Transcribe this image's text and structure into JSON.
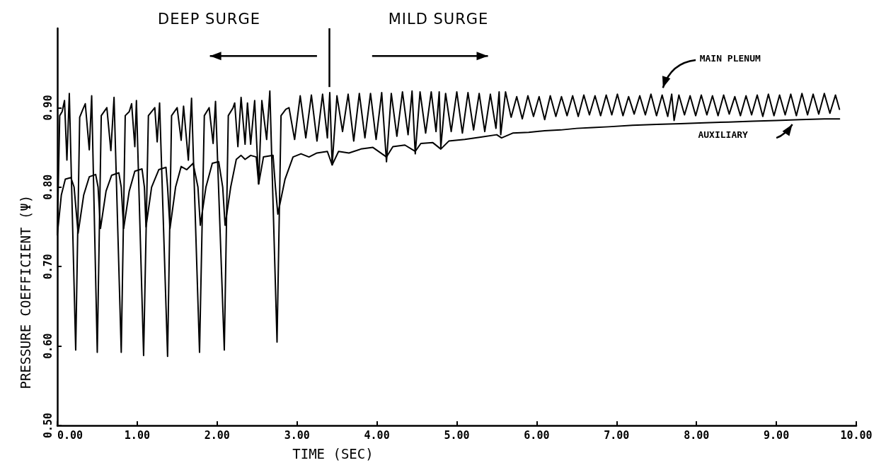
{
  "chart_data": {
    "type": "line",
    "xlabel": "TIME (SEC)",
    "ylabel": "PRESSURE COEFFICIENT (Ψ)",
    "annotations": [
      "DEEP SURGE",
      "MILD SURGE"
    ],
    "xlim": [
      0,
      10
    ],
    "xticks": [
      {
        "value": 0,
        "label": "0.00"
      },
      {
        "value": 1,
        "label": "1.00"
      },
      {
        "value": 2,
        "label": "2.00"
      },
      {
        "value": 3,
        "label": "3.00"
      },
      {
        "value": 4,
        "label": "4.00"
      },
      {
        "value": 5,
        "label": "5.00"
      },
      {
        "value": 6,
        "label": "6.00"
      },
      {
        "value": 7,
        "label": "7.00"
      },
      {
        "value": 8,
        "label": "8.00"
      },
      {
        "value": 9,
        "label": "9.00"
      },
      {
        "value": 10,
        "label": "10.00"
      }
    ],
    "ylim": [
      0.5,
      1.0
    ],
    "yticks": [
      {
        "value": 0.5,
        "label": "0.50"
      },
      {
        "value": 0.6,
        "label": "0.60"
      },
      {
        "value": 0.7,
        "label": "0.70"
      },
      {
        "value": 0.8,
        "label": "0.80"
      },
      {
        "value": 0.9,
        "label": "0.90"
      }
    ],
    "ref_lines": [
      {
        "axis": "x",
        "value": 3.4,
        "color": "#000000"
      }
    ],
    "series": [
      {
        "name": "MAIN PLENUM",
        "color": "#000000",
        "x": [
          0.0,
          0.03,
          0.06,
          0.09,
          0.12,
          0.15,
          0.23,
          0.28,
          0.32,
          0.35,
          0.4,
          0.43,
          0.5,
          0.55,
          0.62,
          0.67,
          0.71,
          0.8,
          0.85,
          0.9,
          0.93,
          0.97,
          0.99,
          1.08,
          1.14,
          1.22,
          1.25,
          1.28,
          1.38,
          1.43,
          1.5,
          1.55,
          1.58,
          1.64,
          1.68,
          1.78,
          1.84,
          1.9,
          1.95,
          1.98,
          2.09,
          2.14,
          2.2,
          2.22,
          2.26,
          2.3,
          2.35,
          2.38,
          2.42,
          2.47,
          2.52,
          2.56,
          2.62,
          2.66,
          2.75,
          2.8,
          2.86,
          2.9,
          2.97,
          3.04,
          3.11,
          3.18,
          3.25,
          3.32,
          3.38,
          3.41,
          3.44,
          3.5,
          3.57,
          3.64,
          3.71,
          3.78,
          3.85,
          3.92,
          3.99,
          4.06,
          4.12,
          4.18,
          4.25,
          4.32,
          4.39,
          4.44,
          4.48,
          4.54,
          4.61,
          4.68,
          4.74,
          4.78,
          4.8,
          4.86,
          4.93,
          5.0,
          5.07,
          5.14,
          5.21,
          5.28,
          5.35,
          5.42,
          5.49,
          5.53,
          5.55,
          5.61,
          5.68,
          5.75,
          5.82,
          5.89,
          5.96,
          6.03,
          6.1,
          6.17,
          6.24,
          6.31,
          6.38,
          6.45,
          6.52,
          6.59,
          6.66,
          6.73,
          6.8,
          6.87,
          6.94,
          7.01,
          7.08,
          7.15,
          7.22,
          7.29,
          7.36,
          7.43,
          7.5,
          7.57,
          7.64,
          7.69,
          7.72,
          7.78,
          7.85,
          7.92,
          7.99,
          8.06,
          8.13,
          8.2,
          8.27,
          8.34,
          8.41,
          8.48,
          8.55,
          8.62,
          8.69,
          8.76,
          8.83,
          8.9,
          8.97,
          9.04,
          9.11,
          9.18,
          9.25,
          9.32,
          9.39,
          9.46,
          9.53,
          9.6,
          9.67,
          9.74,
          9.79
        ],
        "values": [
          0.742,
          0.89,
          0.895,
          0.909,
          0.834,
          0.918,
          0.595,
          0.888,
          0.898,
          0.905,
          0.847,
          0.915,
          0.592,
          0.89,
          0.9,
          0.846,
          0.913,
          0.592,
          0.89,
          0.895,
          0.905,
          0.851,
          0.909,
          0.588,
          0.89,
          0.9,
          0.857,
          0.906,
          0.587,
          0.89,
          0.9,
          0.859,
          0.902,
          0.834,
          0.912,
          0.592,
          0.89,
          0.9,
          0.855,
          0.908,
          0.595,
          0.89,
          0.9,
          0.906,
          0.851,
          0.913,
          0.854,
          0.906,
          0.854,
          0.909,
          0.804,
          0.909,
          0.86,
          0.921,
          0.605,
          0.89,
          0.898,
          0.9,
          0.86,
          0.915,
          0.862,
          0.916,
          0.858,
          0.917,
          0.862,
          0.919,
          0.828,
          0.915,
          0.87,
          0.917,
          0.858,
          0.918,
          0.862,
          0.918,
          0.86,
          0.919,
          0.832,
          0.918,
          0.864,
          0.92,
          0.866,
          0.921,
          0.842,
          0.92,
          0.868,
          0.92,
          0.87,
          0.92,
          0.85,
          0.918,
          0.87,
          0.92,
          0.868,
          0.919,
          0.872,
          0.918,
          0.87,
          0.917,
          0.874,
          0.92,
          0.866,
          0.92,
          0.888,
          0.914,
          0.886,
          0.915,
          0.889,
          0.914,
          0.885,
          0.915,
          0.889,
          0.914,
          0.89,
          0.915,
          0.889,
          0.916,
          0.891,
          0.915,
          0.89,
          0.916,
          0.891,
          0.917,
          0.89,
          0.914,
          0.892,
          0.915,
          0.891,
          0.917,
          0.89,
          0.916,
          0.889,
          0.917,
          0.884,
          0.916,
          0.891,
          0.915,
          0.89,
          0.916,
          0.891,
          0.915,
          0.89,
          0.916,
          0.892,
          0.914,
          0.89,
          0.915,
          0.891,
          0.916,
          0.889,
          0.917,
          0.89,
          0.916,
          0.891,
          0.917,
          0.89,
          0.918,
          0.891,
          0.917,
          0.892,
          0.918,
          0.893,
          0.916,
          0.898
        ]
      },
      {
        "name": "AUXILIARY",
        "color": "#000000",
        "x": [
          0.0,
          0.05,
          0.1,
          0.17,
          0.21,
          0.26,
          0.33,
          0.4,
          0.48,
          0.51,
          0.54,
          0.61,
          0.68,
          0.77,
          0.8,
          0.83,
          0.9,
          0.97,
          1.06,
          1.09,
          1.11,
          1.18,
          1.27,
          1.36,
          1.38,
          1.41,
          1.48,
          1.55,
          1.62,
          1.7,
          1.76,
          1.79,
          1.86,
          1.94,
          2.02,
          2.07,
          2.1,
          2.17,
          2.24,
          2.3,
          2.35,
          2.42,
          2.49,
          2.52,
          2.58,
          2.7,
          2.73,
          2.76,
          2.85,
          2.95,
          3.05,
          3.15,
          3.25,
          3.38,
          3.44,
          3.52,
          3.65,
          3.8,
          3.95,
          4.12,
          4.2,
          4.35,
          4.48,
          4.55,
          4.7,
          4.8,
          4.9,
          5.1,
          5.3,
          5.5,
          5.56,
          5.7,
          5.9,
          6.1,
          6.3,
          6.5,
          6.7,
          6.9,
          7.2,
          7.5,
          7.8,
          8.1,
          8.4,
          8.7,
          9.0,
          9.3,
          9.6,
          9.79
        ],
        "values": [
          0.74,
          0.79,
          0.81,
          0.812,
          0.8,
          0.742,
          0.79,
          0.813,
          0.816,
          0.8,
          0.748,
          0.795,
          0.815,
          0.818,
          0.8,
          0.748,
          0.795,
          0.82,
          0.823,
          0.8,
          0.75,
          0.8,
          0.822,
          0.825,
          0.8,
          0.748,
          0.8,
          0.826,
          0.822,
          0.83,
          0.8,
          0.752,
          0.8,
          0.83,
          0.832,
          0.8,
          0.752,
          0.8,
          0.835,
          0.84,
          0.835,
          0.84,
          0.838,
          0.804,
          0.838,
          0.84,
          0.8,
          0.766,
          0.81,
          0.838,
          0.842,
          0.838,
          0.843,
          0.845,
          0.828,
          0.845,
          0.843,
          0.848,
          0.85,
          0.838,
          0.851,
          0.853,
          0.845,
          0.855,
          0.856,
          0.848,
          0.858,
          0.86,
          0.863,
          0.866,
          0.862,
          0.868,
          0.869,
          0.871,
          0.872,
          0.874,
          0.875,
          0.876,
          0.878,
          0.879,
          0.88,
          0.881,
          0.882,
          0.883,
          0.884,
          0.885,
          0.886,
          0.886
        ]
      }
    ]
  }
}
